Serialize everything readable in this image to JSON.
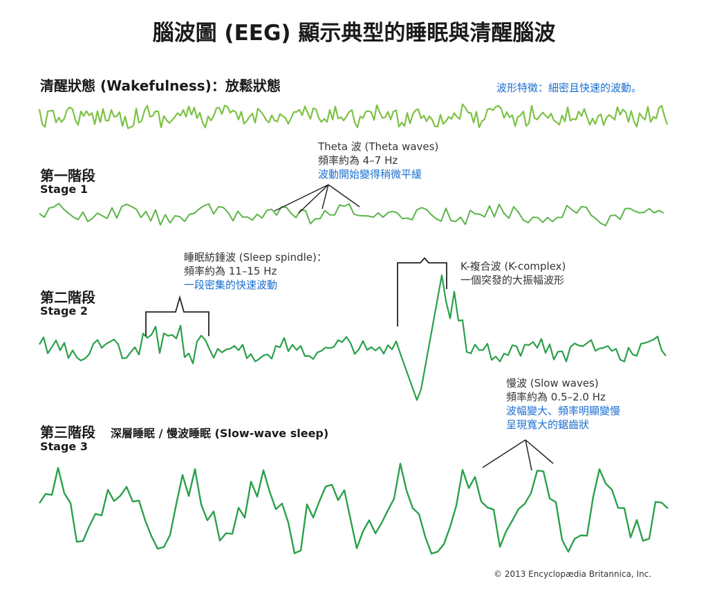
{
  "title": "腦波圖 (EEG) 顯示典型的睡眠與清醒腦波",
  "colors": {
    "wave_light": "#7cc243",
    "wave_mid": "#5bb449",
    "wave_dark": "#2aa04a",
    "accent": "#1a6fd1",
    "bracket": "#222222"
  },
  "wake": {
    "title": "清醒狀態 (Wakefulness)：放鬆狀態",
    "feature": "波形特徵：細密且快速的波動。"
  },
  "stage1": {
    "title": "第一階段",
    "subtitle": "Stage 1",
    "note_line1": "Theta 波 (Theta waves)",
    "note_line2": "頻率約為 4–7 Hz",
    "note_line3": "波動開始變得稍微平緩"
  },
  "stage2": {
    "title": "第二階段",
    "subtitle": "Stage 2",
    "spindle_line1": "睡眠紡錘波 (Sleep spindle)：",
    "spindle_line2": "頻率約為 11–15 Hz",
    "spindle_line3": "一段密集的快速波動",
    "k_line1": "K-複合波 (K-complex)",
    "k_line2": "一個突發的大振幅波形"
  },
  "stage3": {
    "title": "第三階段",
    "title_extra": "深層睡眠 / 慢波睡眠 (Slow-wave sleep)",
    "subtitle": "Stage 3",
    "note_line1": "慢波 (Slow waves)",
    "note_line2": "頻率約為 0.5–2.0 Hz",
    "note_line3": "波幅變大、頻率明顯變慢",
    "note_line4": "呈現寬大的鋸齒狀"
  },
  "copyright": "© 2013 Encyclopædia Britannica, Inc."
}
